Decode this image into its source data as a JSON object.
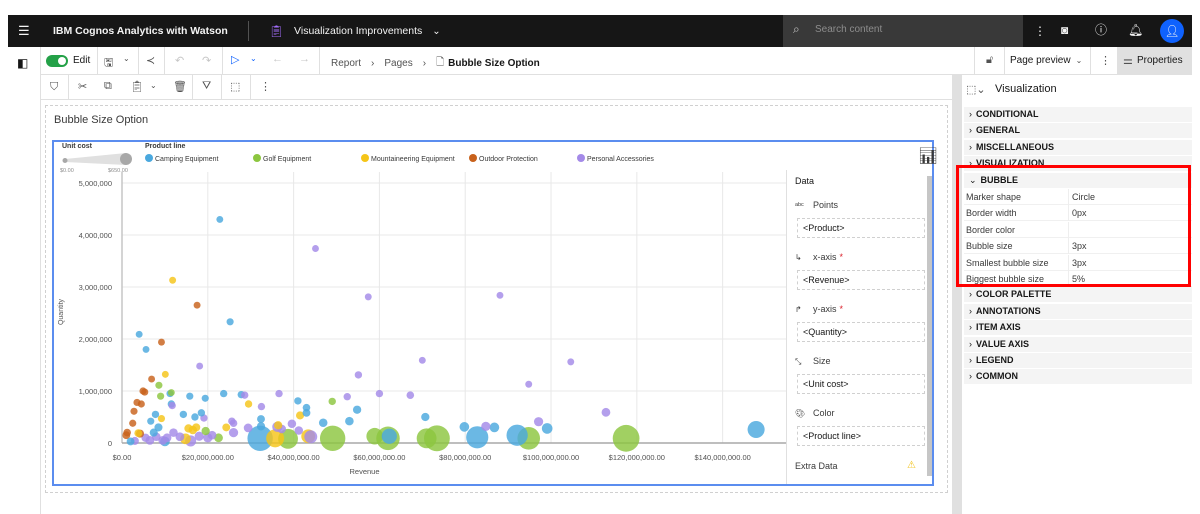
{
  "topbar": {
    "app_title": "IBM Cognos Analytics with Watson",
    "report_name": "Visualization Improvements",
    "search_placeholder": "Search content"
  },
  "toolbar": {
    "edit_label": "Edit",
    "breadcrumb": [
      "Report",
      "Pages",
      "Bubble Size Option"
    ],
    "page_preview": "Page preview",
    "properties": "Properties"
  },
  "page": {
    "title": "Bubble Size Option"
  },
  "data_pane": {
    "header": "Data",
    "slots": [
      {
        "label": "Points",
        "value": "<Product>",
        "required": false,
        "icon": "abc-icon"
      },
      {
        "label": "x-axis",
        "value": "<Revenue>",
        "required": true,
        "icon": "x-axis-icon"
      },
      {
        "label": "y-axis",
        "value": "<Quantity>",
        "required": true,
        "icon": "y-axis-icon"
      },
      {
        "label": "Size",
        "value": "<Unit cost>",
        "required": false,
        "icon": "resize-icon"
      },
      {
        "label": "Color",
        "value": "<Product line>",
        "required": false,
        "icon": "palette-icon"
      }
    ],
    "extra": "Extra Data",
    "required_mark": "*"
  },
  "properties": {
    "header": "Visualization",
    "sections_before": [
      "CONDITIONAL",
      "GENERAL",
      "MISCELLANEOUS",
      "VISUALIZATION"
    ],
    "open_section": "BUBBLE",
    "rows": [
      {
        "k": "Marker shape",
        "v": "Circle"
      },
      {
        "k": "Border width",
        "v": "0px"
      },
      {
        "k": "Border color",
        "v": ""
      },
      {
        "k": "Bubble size",
        "v": "3px"
      },
      {
        "k": "Smallest bubble size",
        "v": "3px"
      },
      {
        "k": "Biggest bubble size",
        "v": "5%"
      }
    ],
    "sections_after": [
      "COLOR PALETTE",
      "ANNOTATIONS",
      "ITEM AXIS",
      "VALUE AXIS",
      "LEGEND",
      "COMMON"
    ]
  },
  "colors": {
    "accent": "#0f62fe",
    "highlight": "#ff0000",
    "frame": "#5b8def"
  },
  "chart_data": {
    "type": "scatter",
    "subtype": "bubble",
    "xlabel": "Revenue",
    "ylabel": "Quantity",
    "xlim": [
      0,
      155000000
    ],
    "ylim": [
      0,
      5500000
    ],
    "xticks": [
      {
        "v": 0,
        "l": "$0.00"
      },
      {
        "v": 20000000,
        "l": "$20,000,000.00"
      },
      {
        "v": 40000000,
        "l": "$40,000,000.00"
      },
      {
        "v": 60000000,
        "l": "$60,000,000.00"
      },
      {
        "v": 80000000,
        "l": "$80,000,000.00"
      },
      {
        "v": 100000000,
        "l": "$100,000,000.00"
      },
      {
        "v": 120000000,
        "l": "$120,000,000.00"
      },
      {
        "v": 140000000,
        "l": "$140,000,000.00"
      }
    ],
    "yticks": [
      {
        "v": 0,
        "l": "0"
      },
      {
        "v": 1000000,
        "l": "1,000,000"
      },
      {
        "v": 2000000,
        "l": "2,000,000"
      },
      {
        "v": 3000000,
        "l": "3,000,000"
      },
      {
        "v": 4000000,
        "l": "4,000,000"
      },
      {
        "v": 5000000,
        "l": "5,000,000"
      }
    ],
    "grid": true,
    "size_legend": {
      "title": "Unit cost",
      "min": "$0.00",
      "max": "$650.00"
    },
    "color_legend_title": "Product line",
    "series": [
      {
        "name": "Camping Equipment",
        "color": "#4aa8de"
      },
      {
        "name": "Golf Equipment",
        "color": "#8cc63f"
      },
      {
        "name": "Mountaineering Equipment",
        "color": "#f5c518"
      },
      {
        "name": "Outdoor Protection",
        "color": "#c8611b"
      },
      {
        "name": "Personal Accessories",
        "color": "#a48ae8"
      }
    ],
    "points_fields": [
      "revenue",
      "quantity",
      "unit_cost",
      "series_index"
    ],
    "points": [
      [
        22800000,
        4300000,
        20,
        0
      ],
      [
        45100000,
        3740000,
        20,
        4
      ],
      [
        11800000,
        3130000,
        20,
        2
      ],
      [
        17500000,
        2650000,
        20,
        3
      ],
      [
        25200000,
        2330000,
        25,
        0
      ],
      [
        57400000,
        2810000,
        20,
        4
      ],
      [
        4000000,
        2090000,
        20,
        0
      ],
      [
        5600000,
        1800000,
        20,
        0
      ],
      [
        9200000,
        1940000,
        20,
        3
      ],
      [
        18100000,
        1480000,
        20,
        4
      ],
      [
        10100000,
        1320000,
        20,
        2
      ],
      [
        6900000,
        1230000,
        20,
        3
      ],
      [
        8600000,
        1110000,
        25,
        1
      ],
      [
        4900000,
        1000000,
        25,
        3
      ],
      [
        5300000,
        980000,
        25,
        3
      ],
      [
        55100000,
        1310000,
        30,
        4
      ],
      [
        70000000,
        1590000,
        20,
        4
      ],
      [
        60000000,
        950000,
        30,
        4
      ],
      [
        67200000,
        920000,
        35,
        4
      ],
      [
        54800000,
        640000,
        50,
        0
      ],
      [
        53000000,
        420000,
        55,
        0
      ],
      [
        46900000,
        390000,
        55,
        0
      ],
      [
        49000000,
        800000,
        30,
        1
      ],
      [
        52500000,
        890000,
        30,
        4
      ],
      [
        41000000,
        810000,
        30,
        0
      ],
      [
        43000000,
        680000,
        35,
        0
      ],
      [
        43000000,
        580000,
        40,
        0
      ],
      [
        41500000,
        530000,
        45,
        2
      ],
      [
        36600000,
        950000,
        30,
        4
      ],
      [
        32500000,
        700000,
        30,
        4
      ],
      [
        27800000,
        930000,
        30,
        0
      ],
      [
        28600000,
        920000,
        30,
        4
      ],
      [
        23700000,
        950000,
        30,
        0
      ],
      [
        19400000,
        860000,
        25,
        0
      ],
      [
        29500000,
        750000,
        30,
        2
      ],
      [
        15800000,
        900000,
        25,
        0
      ],
      [
        11200000,
        950000,
        25,
        0
      ],
      [
        11500000,
        970000,
        20,
        1
      ],
      [
        11500000,
        750000,
        30,
        0
      ],
      [
        11700000,
        720000,
        30,
        4
      ],
      [
        2800000,
        610000,
        25,
        3
      ],
      [
        3500000,
        780000,
        25,
        3
      ],
      [
        4500000,
        750000,
        25,
        3
      ],
      [
        9000000,
        900000,
        25,
        1
      ],
      [
        9200000,
        470000,
        25,
        2
      ],
      [
        6700000,
        420000,
        25,
        0
      ],
      [
        7800000,
        550000,
        30,
        0
      ],
      [
        2500000,
        380000,
        25,
        3
      ],
      [
        14300000,
        550000,
        30,
        0
      ],
      [
        17000000,
        500000,
        30,
        0
      ],
      [
        19100000,
        480000,
        30,
        4
      ],
      [
        18500000,
        580000,
        30,
        0
      ],
      [
        25600000,
        420000,
        30,
        4
      ],
      [
        24300000,
        300000,
        40,
        2
      ],
      [
        26000000,
        380000,
        35,
        4
      ],
      [
        26000000,
        200000,
        70,
        4
      ],
      [
        29400000,
        290000,
        60,
        4
      ],
      [
        32400000,
        460000,
        40,
        0
      ],
      [
        32400000,
        320000,
        50,
        0
      ],
      [
        36200000,
        310000,
        90,
        4
      ],
      [
        36400000,
        340000,
        50,
        2
      ],
      [
        37200000,
        270000,
        60,
        4
      ],
      [
        39600000,
        370000,
        55,
        4
      ],
      [
        41200000,
        240000,
        55,
        4
      ],
      [
        43400000,
        130000,
        170,
        2
      ],
      [
        44000000,
        120000,
        150,
        4
      ],
      [
        32200000,
        90000,
        420,
        0
      ],
      [
        35700000,
        90000,
        260,
        2
      ],
      [
        38700000,
        80000,
        300,
        1
      ],
      [
        49100000,
        90000,
        420,
        1
      ],
      [
        58900000,
        130000,
        230,
        1
      ],
      [
        62000000,
        90000,
        380,
        1
      ],
      [
        62300000,
        130000,
        200,
        0
      ],
      [
        70700000,
        500000,
        50,
        0
      ],
      [
        71000000,
        90000,
        300,
        1
      ],
      [
        73400000,
        90000,
        430,
        1
      ],
      [
        79800000,
        310000,
        80,
        0
      ],
      [
        84800000,
        320000,
        70,
        4
      ],
      [
        86800000,
        300000,
        80,
        0
      ],
      [
        82800000,
        110000,
        350,
        0
      ],
      [
        92100000,
        150000,
        330,
        0
      ],
      [
        94800000,
        90000,
        360,
        1
      ],
      [
        97100000,
        410000,
        70,
        4
      ],
      [
        99100000,
        280000,
        100,
        0
      ],
      [
        88100000,
        2840000,
        20,
        4
      ],
      [
        104600000,
        1560000,
        20,
        4
      ],
      [
        94800000,
        1130000,
        20,
        4
      ],
      [
        112800000,
        590000,
        60,
        4
      ],
      [
        117500000,
        90000,
        450,
        1
      ],
      [
        147800000,
        260000,
        240,
        0
      ],
      [
        1000000,
        150000,
        40,
        3
      ],
      [
        1200000,
        200000,
        35,
        3
      ],
      [
        2000000,
        30000,
        40,
        0
      ],
      [
        3000000,
        40000,
        45,
        4
      ],
      [
        3800000,
        190000,
        40,
        2
      ],
      [
        4200000,
        180000,
        45,
        3
      ],
      [
        5500000,
        100000,
        50,
        4
      ],
      [
        6500000,
        50000,
        60,
        4
      ],
      [
        7400000,
        200000,
        45,
        0
      ],
      [
        8000000,
        120000,
        55,
        4
      ],
      [
        8500000,
        300000,
        45,
        0
      ],
      [
        9500000,
        50000,
        60,
        4
      ],
      [
        10500000,
        100000,
        60,
        4
      ],
      [
        12000000,
        200000,
        55,
        4
      ],
      [
        13500000,
        120000,
        60,
        4
      ],
      [
        14800000,
        80000,
        100,
        2
      ],
      [
        15500000,
        280000,
        50,
        2
      ],
      [
        16500000,
        250000,
        55,
        2
      ],
      [
        17300000,
        300000,
        45,
        2
      ],
      [
        18000000,
        130000,
        70,
        4
      ],
      [
        19500000,
        230000,
        50,
        1
      ],
      [
        20000000,
        100000,
        70,
        4
      ],
      [
        21000000,
        150000,
        55,
        4
      ],
      [
        22500000,
        100000,
        60,
        1
      ],
      [
        16000000,
        40000,
        110,
        4
      ],
      [
        10000000,
        30000,
        80,
        0
      ]
    ]
  }
}
